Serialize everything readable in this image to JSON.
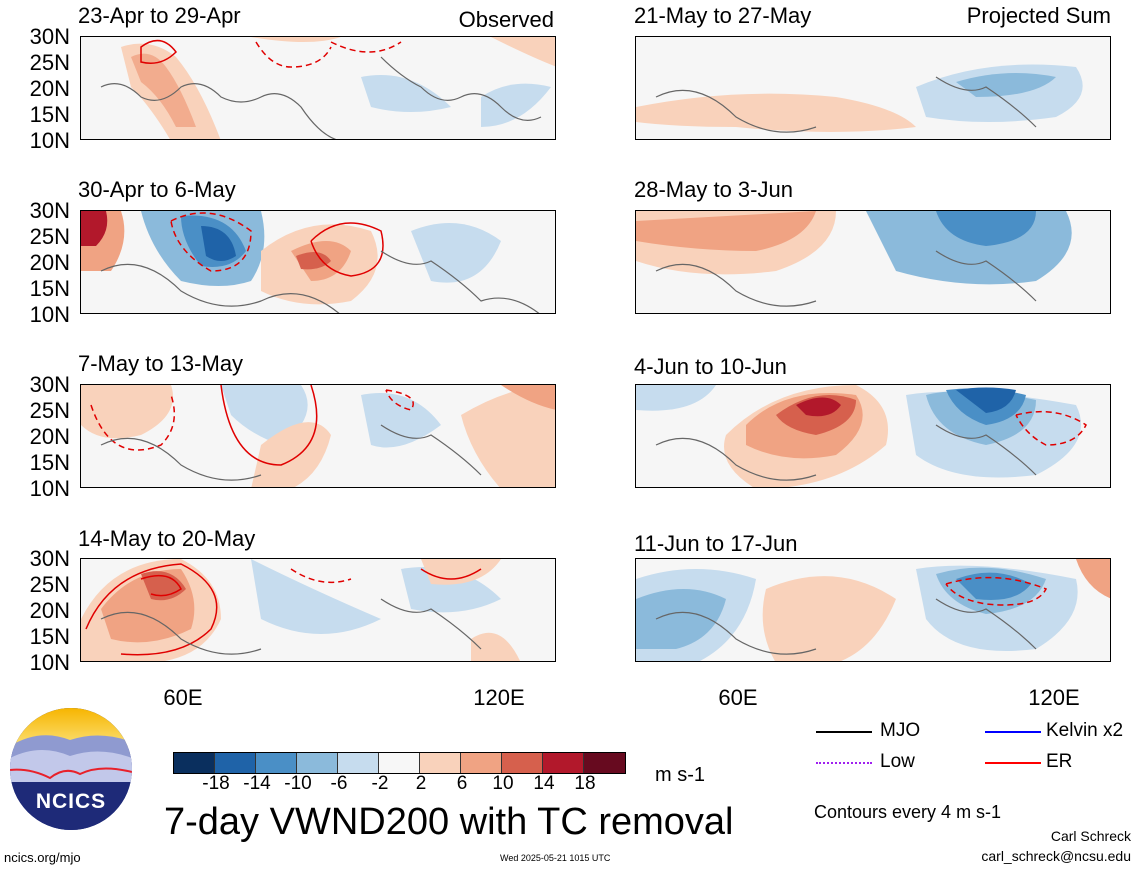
{
  "header": {
    "observed_label": "Observed",
    "projected_label": "Projected Sum"
  },
  "panels_left": [
    {
      "title": "23-Apr to 29-Apr"
    },
    {
      "title": "30-Apr to 6-May"
    },
    {
      "title": "7-May to 13-May"
    },
    {
      "title": "14-May to 20-May"
    }
  ],
  "panels_right": [
    {
      "title": "21-May to 27-May"
    },
    {
      "title": "28-May to 3-Jun"
    },
    {
      "title": "4-Jun to 10-Jun"
    },
    {
      "title": "11-Jun to 17-Jun"
    }
  ],
  "axes": {
    "y_ticks": [
      "30N",
      "25N",
      "20N",
      "15N",
      "10N"
    ],
    "x_ticks": [
      "60E",
      "120E"
    ]
  },
  "colorbar": {
    "labels": [
      "-18",
      "-14",
      "-10",
      "-6",
      "-2",
      "2",
      "6",
      "10",
      "14",
      "18"
    ],
    "colors": [
      "#0a2f5e",
      "#1f63a8",
      "#4a8fc6",
      "#8bbadb",
      "#c6dcee",
      "#f7f7f7",
      "#f9d2bb",
      "#f0a383",
      "#d6604d",
      "#b2182b",
      "#670a1f"
    ],
    "units": "m s-1"
  },
  "legend": {
    "items": [
      {
        "label": "MJO",
        "color": "#000000",
        "style": "solid"
      },
      {
        "label": "Kelvin x2",
        "color": "#0000ff",
        "style": "solid"
      },
      {
        "label": "Low",
        "color": "#a020f0",
        "style": "dotted"
      },
      {
        "label": "ER",
        "color": "#ff0000",
        "style": "solid"
      }
    ],
    "contour_note": "Contours every 4 m s-1"
  },
  "title": "7-day VWND200 with TC removal",
  "logo": {
    "text": "NCICS"
  },
  "footer": {
    "url": "ncics.org/mjo",
    "timestamp": "Wed 2025-05-21 1015 UTC",
    "author": "Carl Schreck",
    "email": "carl_schreck@ncsu.edu"
  }
}
